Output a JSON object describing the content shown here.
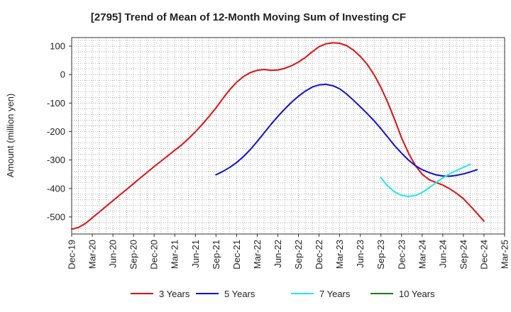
{
  "chart_data": {
    "type": "line",
    "title": "[2795]  Trend of Mean of 12-Month Moving Sum of Investing CF",
    "xlabel": "",
    "ylabel": "Amount (million yen)",
    "ylim": [
      -560,
      130
    ],
    "yticks": [
      100,
      0,
      -100,
      -200,
      -300,
      -400,
      -500
    ],
    "ytick_labels": [
      "100",
      "0",
      "-100",
      "-200",
      "-300",
      "-400",
      "-500"
    ],
    "x_start": "Dec-19",
    "x_end": "Mar-25",
    "xtick_labels": [
      "Dec-19",
      "Mar-20",
      "Jun-20",
      "Sep-20",
      "Dec-20",
      "Mar-21",
      "Jun-21",
      "Sep-21",
      "Dec-21",
      "Mar-22",
      "Jun-22",
      "Sep-22",
      "Dec-22",
      "Mar-23",
      "Jun-23",
      "Sep-23",
      "Dec-23",
      "Mar-24",
      "Jun-24",
      "Sep-24",
      "Dec-24",
      "Mar-25"
    ],
    "grid": true,
    "legend_position": "bottom",
    "series": [
      {
        "name": "3 Years",
        "color": "#e01010",
        "start_index": 0,
        "values": [
          -543,
          -537,
          -523,
          -503,
          -483,
          -463,
          -443,
          -423,
          -403,
          -383,
          -363,
          -343,
          -323,
          -304,
          -285,
          -266,
          -247,
          -225,
          -201,
          -175,
          -147,
          -117,
          -84,
          -53,
          -27,
          -7,
          7,
          15,
          18,
          15,
          16,
          22,
          31,
          44,
          60,
          80,
          98,
          108,
          112,
          110,
          102,
          86,
          64,
          36,
          0,
          -45,
          -98,
          -158,
          -222,
          -275,
          -319,
          -350,
          -369,
          -379,
          -388,
          -401,
          -417,
          -436,
          -461,
          -488,
          -515
        ]
      },
      {
        "name": "5 Years",
        "color": "#1010d0",
        "start_index": 21,
        "values": [
          -352,
          -340,
          -326,
          -309,
          -288,
          -263,
          -235,
          -205,
          -175,
          -147,
          -121,
          -97,
          -76,
          -58,
          -44,
          -36,
          -34,
          -39,
          -50,
          -68,
          -90,
          -113,
          -137,
          -162,
          -190,
          -220,
          -250,
          -276,
          -300,
          -320,
          -334,
          -344,
          -352,
          -356,
          -357,
          -354,
          -349,
          -342,
          -334
        ]
      },
      {
        "name": "7 Years",
        "color": "#20e8e8",
        "start_index": 45,
        "values": [
          -362,
          -392,
          -412,
          -424,
          -428,
          -425,
          -414,
          -398,
          -380,
          -363,
          -349,
          -337,
          -326,
          -315
        ]
      },
      {
        "name": "10 Years",
        "color": "#108010",
        "start_index": 0,
        "values": []
      }
    ]
  }
}
